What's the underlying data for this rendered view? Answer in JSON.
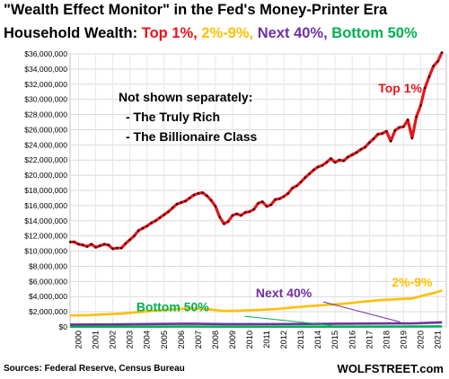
{
  "title": {
    "line1": "\"Wealth Effect Monitor\" in the Fed's Money-Printer Era",
    "prefix": "Household Wealth:",
    "groups": [
      {
        "label": "Top 1%,",
        "color": "#e8141c"
      },
      {
        "label": "2%-9%,",
        "color": "#ffbf00"
      },
      {
        "label": "Next 40%,",
        "color": "#7030a0"
      },
      {
        "label": "Bottom 50%",
        "color": "#00b050"
      }
    ]
  },
  "annotation": {
    "heading": "Not shown separately:",
    "items": [
      "- The Truly Rich",
      "- The Billionaire Class"
    ]
  },
  "source": "Sources: Federal Reserve, Census Bureau",
  "brand": "WOLFSTREET.com",
  "chart_data": {
    "type": "line",
    "ylim": [
      0,
      36000000
    ],
    "y_ticks": [
      "$0",
      "$2,000,000",
      "$4,000,000",
      "$6,000,000",
      "$8,000,000",
      "$10,000,000",
      "$12,000,000",
      "$14,000,000",
      "$16,000,000",
      "$18,000,000",
      "$20,000,000",
      "$22,000,000",
      "$24,000,000",
      "$26,000,000",
      "$28,000,000",
      "$30,000,000",
      "$32,000,000",
      "$34,000,000",
      "$36,000,000"
    ],
    "x_ticks": [
      "2000",
      "2001",
      "2002",
      "2003",
      "2004",
      "2005",
      "2006",
      "2007",
      "2008",
      "2009",
      "2010",
      "2011",
      "2012",
      "2013",
      "2014",
      "2015",
      "2016",
      "2017",
      "2018",
      "2019",
      "2020",
      "2021"
    ],
    "grid": true,
    "series": [
      {
        "name": "Top 1%",
        "color": "#e8141c",
        "marker_color": "#000000",
        "label_pos": [
          2019.3,
          30900000
        ],
        "points": [
          [
            2000.0,
            11200000
          ],
          [
            2000.25,
            11200000
          ],
          [
            2000.5,
            10900000
          ],
          [
            2000.75,
            10800000
          ],
          [
            2001.0,
            10600000
          ],
          [
            2001.25,
            10900000
          ],
          [
            2001.5,
            10500000
          ],
          [
            2001.75,
            10700000
          ],
          [
            2002.0,
            10900000
          ],
          [
            2002.25,
            10800000
          ],
          [
            2002.5,
            10300000
          ],
          [
            2002.75,
            10400000
          ],
          [
            2003.0,
            10400000
          ],
          [
            2003.25,
            11000000
          ],
          [
            2003.5,
            11500000
          ],
          [
            2003.75,
            12000000
          ],
          [
            2004.0,
            12700000
          ],
          [
            2004.25,
            13000000
          ],
          [
            2004.5,
            13300000
          ],
          [
            2004.75,
            13700000
          ],
          [
            2005.0,
            14000000
          ],
          [
            2005.25,
            14400000
          ],
          [
            2005.5,
            14800000
          ],
          [
            2005.75,
            15200000
          ],
          [
            2006.0,
            15700000
          ],
          [
            2006.25,
            16200000
          ],
          [
            2006.5,
            16400000
          ],
          [
            2006.75,
            16600000
          ],
          [
            2007.0,
            17000000
          ],
          [
            2007.25,
            17400000
          ],
          [
            2007.5,
            17600000
          ],
          [
            2007.75,
            17700000
          ],
          [
            2008.0,
            17300000
          ],
          [
            2008.25,
            16700000
          ],
          [
            2008.5,
            15900000
          ],
          [
            2008.75,
            14500000
          ],
          [
            2009.0,
            13600000
          ],
          [
            2009.25,
            13900000
          ],
          [
            2009.5,
            14700000
          ],
          [
            2009.75,
            14900000
          ],
          [
            2010.0,
            14700000
          ],
          [
            2010.25,
            15100000
          ],
          [
            2010.5,
            15200000
          ],
          [
            2010.75,
            15500000
          ],
          [
            2011.0,
            16300000
          ],
          [
            2011.25,
            16500000
          ],
          [
            2011.5,
            15900000
          ],
          [
            2011.75,
            16100000
          ],
          [
            2012.0,
            16800000
          ],
          [
            2012.25,
            16900000
          ],
          [
            2012.5,
            17200000
          ],
          [
            2012.75,
            17600000
          ],
          [
            2013.0,
            18300000
          ],
          [
            2013.25,
            18600000
          ],
          [
            2013.5,
            19100000
          ],
          [
            2013.75,
            19700000
          ],
          [
            2014.0,
            20200000
          ],
          [
            2014.25,
            20700000
          ],
          [
            2014.5,
            21100000
          ],
          [
            2014.75,
            21300000
          ],
          [
            2015.0,
            21700000
          ],
          [
            2015.25,
            22200000
          ],
          [
            2015.5,
            21700000
          ],
          [
            2015.75,
            22000000
          ],
          [
            2016.0,
            21900000
          ],
          [
            2016.25,
            22400000
          ],
          [
            2016.5,
            22700000
          ],
          [
            2016.75,
            23000000
          ],
          [
            2017.0,
            23400000
          ],
          [
            2017.25,
            23700000
          ],
          [
            2017.5,
            24300000
          ],
          [
            2017.75,
            24800000
          ],
          [
            2018.0,
            25400000
          ],
          [
            2018.25,
            25500000
          ],
          [
            2018.5,
            25800000
          ],
          [
            2018.75,
            24500000
          ],
          [
            2019.0,
            25900000
          ],
          [
            2019.25,
            26300000
          ],
          [
            2019.5,
            26400000
          ],
          [
            2019.75,
            27300000
          ],
          [
            2020.0,
            24900000
          ],
          [
            2020.25,
            27700000
          ],
          [
            2020.5,
            29200000
          ],
          [
            2020.75,
            31500000
          ],
          [
            2021.0,
            33000000
          ],
          [
            2021.25,
            34400000
          ],
          [
            2021.5,
            35000000
          ],
          [
            2021.75,
            36200000
          ]
        ]
      },
      {
        "name": "2%-9%",
        "color": "#ffbf00",
        "label_pos": [
          2020.0,
          5300000
        ],
        "points": [
          [
            2000.0,
            1500000
          ],
          [
            2001.0,
            1550000
          ],
          [
            2002.0,
            1650000
          ],
          [
            2003.0,
            1750000
          ],
          [
            2004.0,
            1950000
          ],
          [
            2005.0,
            2150000
          ],
          [
            2006.0,
            2300000
          ],
          [
            2007.0,
            2450000
          ],
          [
            2008.0,
            2350000
          ],
          [
            2009.0,
            2100000
          ],
          [
            2010.0,
            2150000
          ],
          [
            2011.0,
            2250000
          ],
          [
            2012.0,
            2350000
          ],
          [
            2013.0,
            2550000
          ],
          [
            2014.0,
            2750000
          ],
          [
            2015.0,
            2900000
          ],
          [
            2016.0,
            3050000
          ],
          [
            2017.0,
            3300000
          ],
          [
            2018.0,
            3500000
          ],
          [
            2019.0,
            3650000
          ],
          [
            2020.0,
            3750000
          ],
          [
            2020.75,
            4200000
          ],
          [
            2021.25,
            4450000
          ],
          [
            2021.75,
            4800000
          ]
        ]
      },
      {
        "name": "Next 40%",
        "color": "#7030a0",
        "label_pos": [
          2012.5,
          3900000
        ],
        "points": [
          [
            2000.0,
            300000
          ],
          [
            2004.0,
            360000
          ],
          [
            2007.0,
            420000
          ],
          [
            2009.0,
            360000
          ],
          [
            2012.0,
            370000
          ],
          [
            2016.0,
            420000
          ],
          [
            2019.0,
            470000
          ],
          [
            2020.0,
            460000
          ],
          [
            2021.75,
            600000
          ]
        ]
      },
      {
        "name": "Bottom 50%",
        "color": "#00b050",
        "label_pos": [
          2006.0,
          2050000
        ],
        "points": [
          [
            2000.0,
            30000
          ],
          [
            2005.0,
            40000
          ],
          [
            2007.0,
            50000
          ],
          [
            2009.0,
            30000
          ],
          [
            2015.0,
            35000
          ],
          [
            2019.0,
            45000
          ],
          [
            2021.75,
            70000
          ]
        ]
      }
    ],
    "pointers": [
      {
        "series": "Next 40%",
        "from": [
          2014.8,
          3300000
        ],
        "to": [
          2019.3,
          650000
        ]
      },
      {
        "series": "Bottom 50%",
        "from": [
          2010.2,
          1400000
        ],
        "to": [
          2015.3,
          200000
        ]
      }
    ]
  }
}
